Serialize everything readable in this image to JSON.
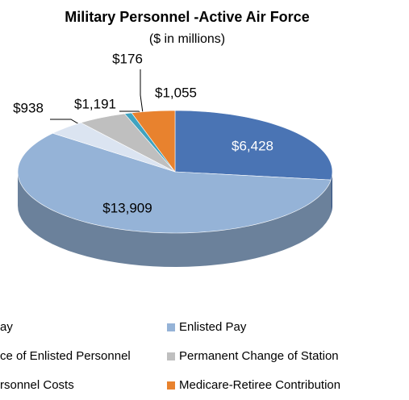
{
  "chart_data": {
    "type": "pie",
    "title": "Military Personnel -Active Air Force",
    "subtitle": "($ in millions)",
    "categories": [
      "ay",
      "Enlisted Pay",
      "ce of Enlisted Personnel",
      "Permanent Change of Station",
      "rsonnel Costs",
      "Medicare-Retiree Contribution"
    ],
    "values": [
      6428,
      13909,
      938,
      1191,
      176,
      1055
    ],
    "value_labels": [
      "$6,428",
      "$13,909",
      "$938",
      "$1,191",
      "$176",
      "$1,055"
    ],
    "colors": [
      "#4a74b4",
      "#95b3d7",
      "#dbe4f1",
      "#bfbfbf",
      "#3fa3c0",
      "#e8822e"
    ]
  }
}
